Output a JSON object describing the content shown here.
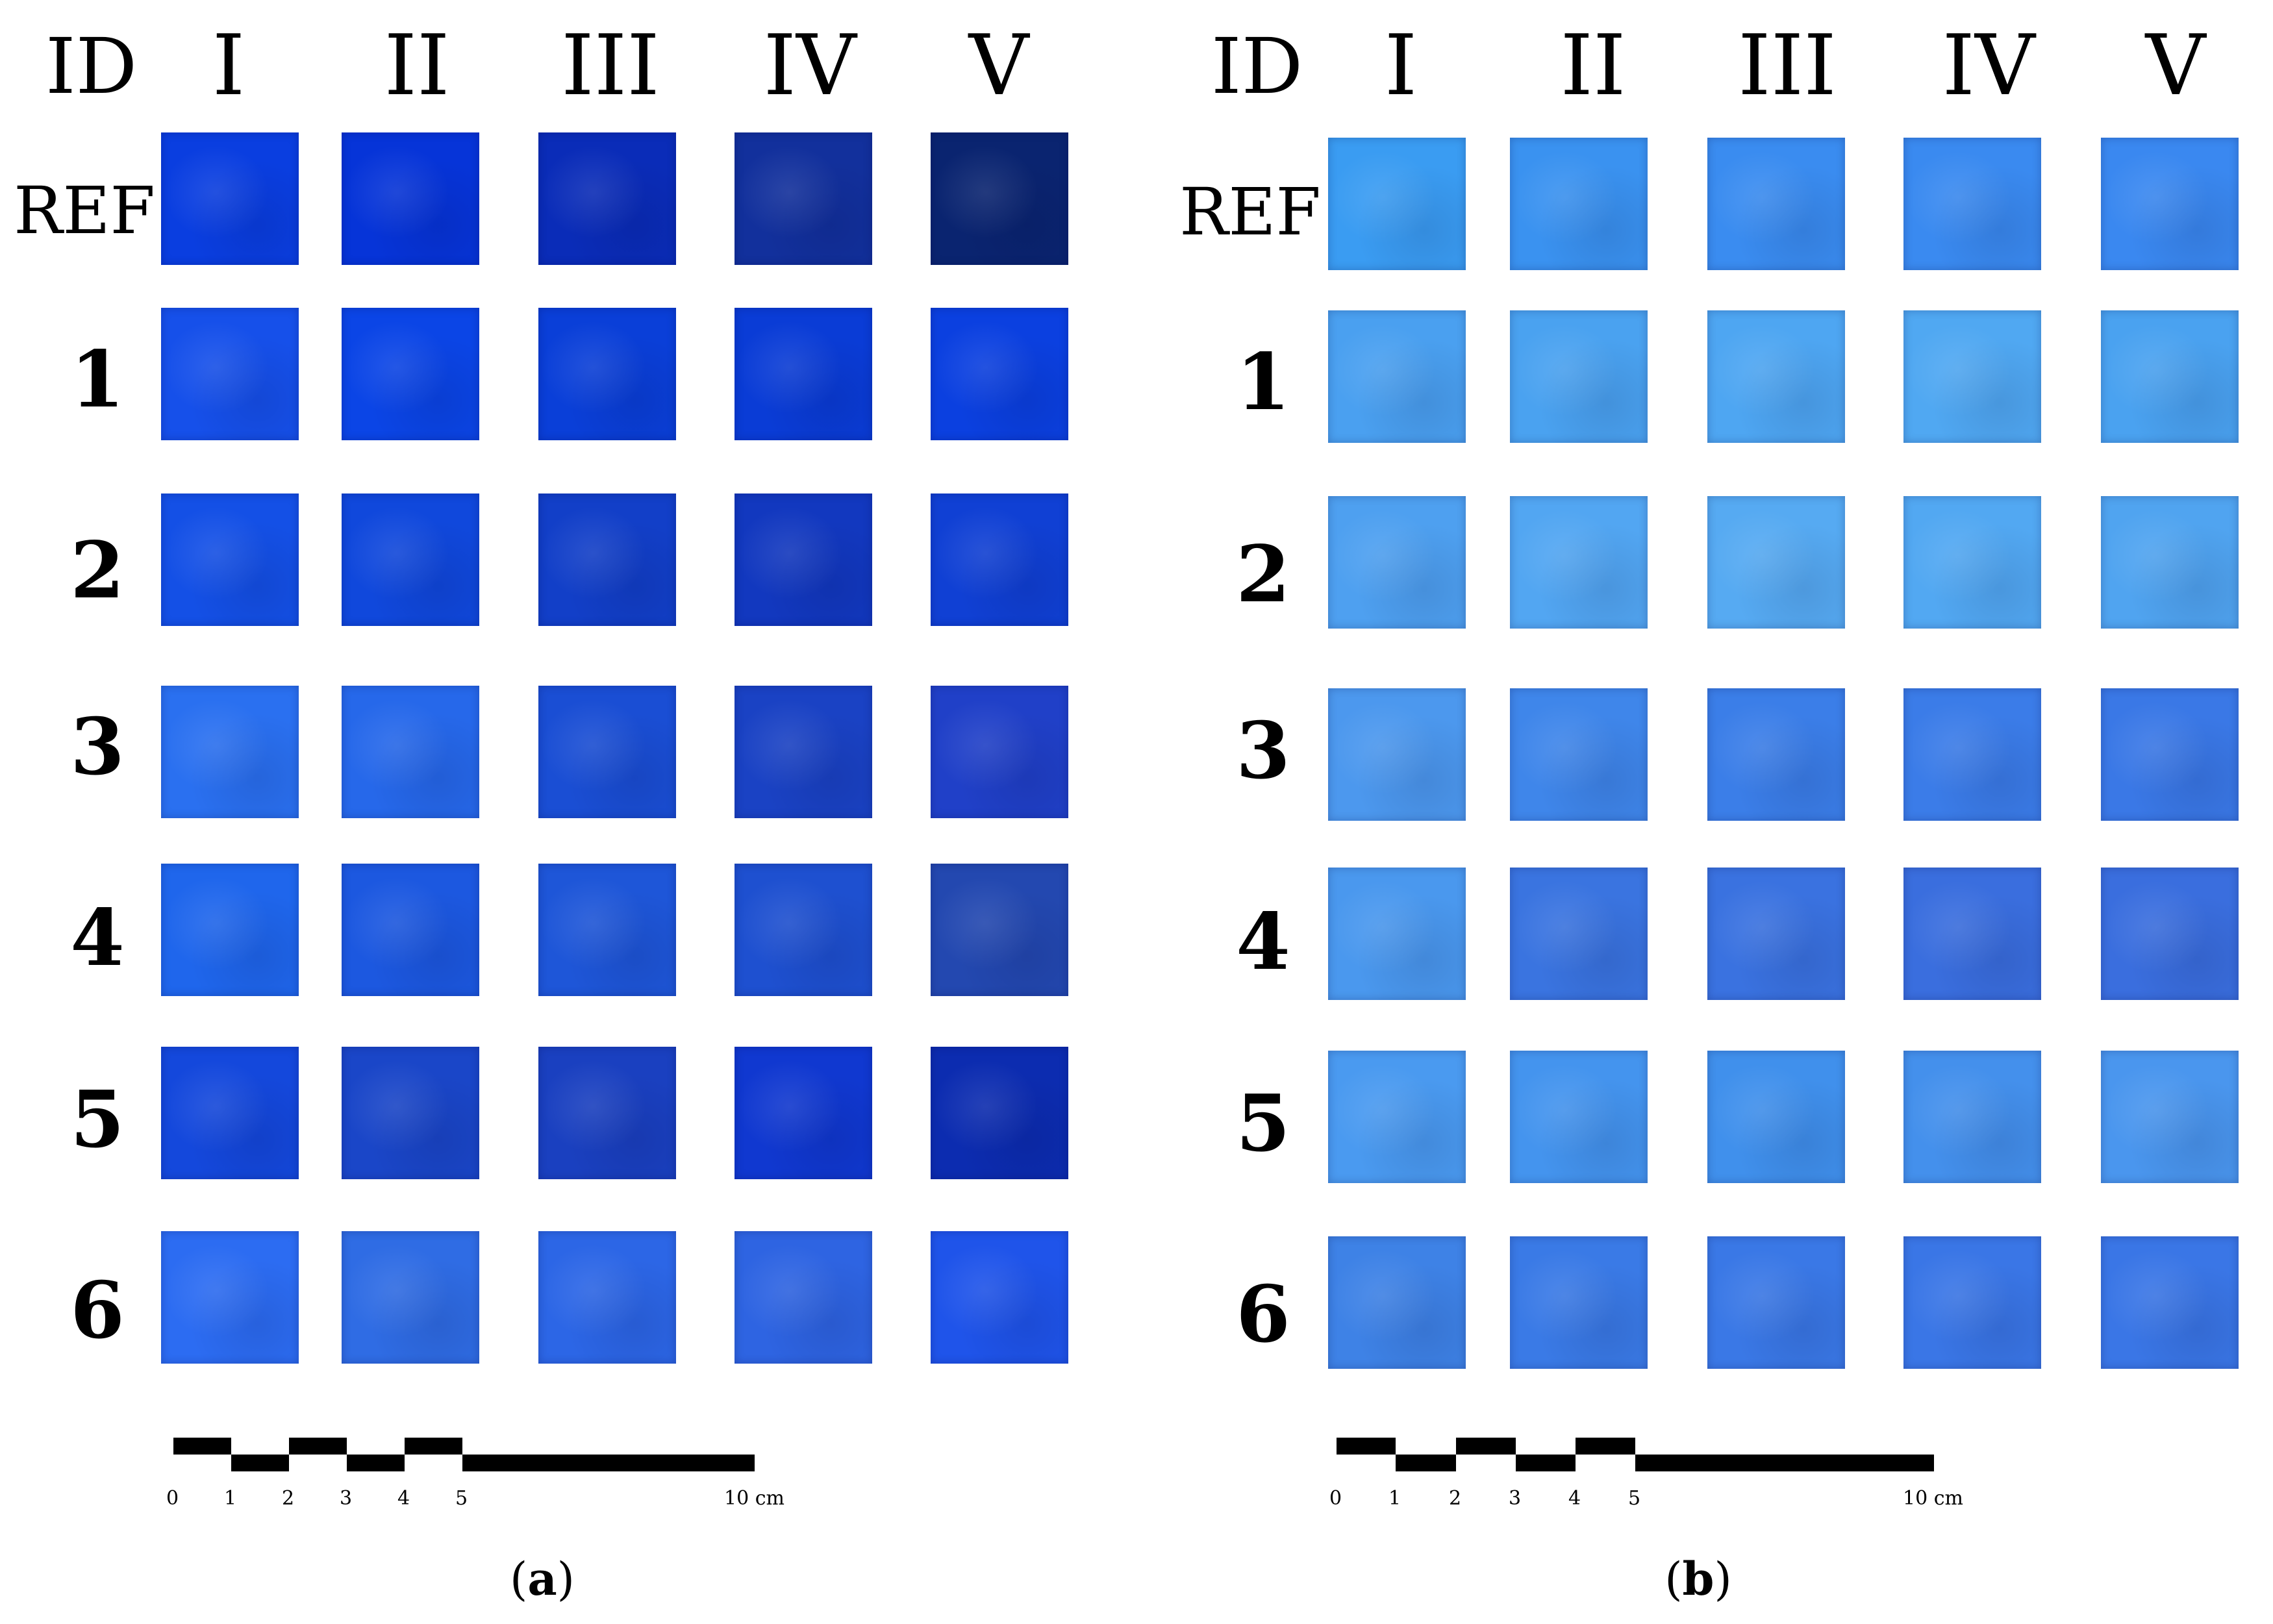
{
  "panels": [
    {
      "id": "a",
      "caption": "(a)",
      "caption_letter": "a",
      "headers": [
        "ID",
        "I",
        "II",
        "III",
        "IV",
        "V"
      ],
      "rows": [
        "REF",
        "1",
        "2",
        "3",
        "4",
        "5",
        "6"
      ],
      "colors": [
        [
          "#0a3ee0",
          "#0634d8",
          "#0a2cb8",
          "#12309c",
          "#0a2470"
        ],
        [
          "#1650ea",
          "#0b45e6",
          "#0a3fd8",
          "#0a3cd6",
          "#0b40e0"
        ],
        [
          "#1450e6",
          "#1048dc",
          "#123fc8",
          "#1238bf",
          "#1040d4"
        ],
        [
          "#2a70f0",
          "#2668ea",
          "#1a4ed4",
          "#1a42c4",
          "#2040c8"
        ],
        [
          "#1f66ec",
          "#1c58e0",
          "#1e56d8",
          "#1e50d0",
          "#2348b0"
        ],
        [
          "#1448dc",
          "#1a46c8",
          "#1a40c0",
          "#1038d0",
          "#0c2cb0"
        ],
        [
          "#2c6cf2",
          "#2f6ce4",
          "#2c66e6",
          "#2e64e2",
          "#1f54ea"
        ]
      ],
      "scale": {
        "ticks": [
          "0",
          "1",
          "2",
          "3",
          "4",
          "5"
        ],
        "end_label": "10 cm"
      }
    },
    {
      "id": "b",
      "caption": "(b)",
      "caption_letter": "b",
      "headers": [
        "ID",
        "I",
        "II",
        "III",
        "IV",
        "V"
      ],
      "rows": [
        "REF",
        "1",
        "2",
        "3",
        "4",
        "5",
        "6"
      ],
      "colors": [
        [
          "#3a9cf2",
          "#3a92f0",
          "#3a8cf0",
          "#3a8af0",
          "#3a88f0"
        ],
        [
          "#4aa0f0",
          "#4aa2f0",
          "#4ea6f2",
          "#50a8f2",
          "#4aa2f0"
        ],
        [
          "#4ea0f0",
          "#52a6f2",
          "#56aaf2",
          "#52a8f2",
          "#50a4f0"
        ],
        [
          "#4c98ee",
          "#3f86ea",
          "#3b7ee8",
          "#3b7ce8",
          "#3a78e6"
        ],
        [
          "#4a98ee",
          "#3a74e0",
          "#3a72e0",
          "#3a6ede",
          "#3a6ede"
        ],
        [
          "#4a9af0",
          "#4494ee",
          "#4090ec",
          "#4490ec",
          "#4a96ee"
        ],
        [
          "#3e82e6",
          "#3a7ae6",
          "#3a78e6",
          "#3a76e6",
          "#3a76e6"
        ]
      ],
      "scale": {
        "ticks": [
          "0",
          "1",
          "2",
          "3",
          "4",
          "5"
        ],
        "end_label": "10 cm"
      }
    }
  ]
}
